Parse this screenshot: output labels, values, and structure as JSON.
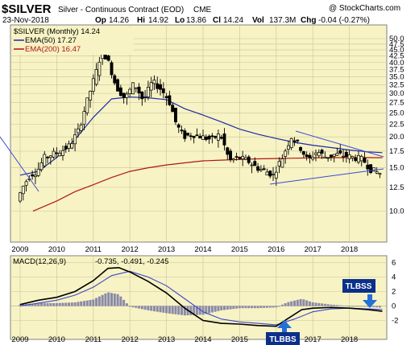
{
  "header": {
    "symbol": "$SILVER",
    "description": "Silver - Continuous Contract (EOD)",
    "exchange": "CME",
    "date": "23-Nov-2018",
    "open_label": "Op",
    "open": "14.26",
    "high_label": "Hi",
    "high": "14.92",
    "low_label": "Lo",
    "low": "13.86",
    "close_label": "Cl",
    "close": "14.24",
    "volume_label": "Vol",
    "volume": "137.3M",
    "change_label": "Chg",
    "change": "-0.04 (-0.27%)",
    "copyright": "@ StockCharts.com"
  },
  "legend": {
    "price": "$SILVER (Monthly) 14.24",
    "ema50": "EMA(50) 17.27",
    "ema200": "EMA(200) 16.47",
    "macd_title": "MACD(12,26,9)",
    "macd_values": "-0.735, -0.491, -0.245"
  },
  "annotations": {
    "top": "TLBSS",
    "bottom": "TLBBS"
  },
  "colors": {
    "panel_bg": "#f7f3c4",
    "candle": "#000000",
    "ema50": "#1c2aa8",
    "ema200": "#b01515",
    "trendline": "#3a48d8",
    "macd": "#000000",
    "signal": "#3b49cc",
    "histogram": "#8a8aa8",
    "annotation_bg": "#0b2f8a",
    "arrow": "#2470d8"
  },
  "chart_data": [
    {
      "type": "candlestick",
      "title": "$SILVER Silver - Continuous Contract (EOD)",
      "x_ticks": [
        "2009",
        "2010",
        "2011",
        "2012",
        "2013",
        "2014",
        "2015",
        "2016",
        "2017",
        "2018"
      ],
      "y_ticks": [
        "50.0",
        "47.5",
        "45.0",
        "42.5",
        "40.0",
        "37.5",
        "35.0",
        "32.5",
        "30.0",
        "27.5",
        "25.0",
        "22.5",
        "20.0",
        "17.5",
        "15.0",
        "12.5",
        "10.0"
      ],
      "ylim": [
        7.5,
        50.0
      ],
      "scale": "log",
      "series": [
        {
          "name": "$SILVER (Monthly) 14.24",
          "points": [
            [
              2009.0,
              11.0
            ],
            [
              2009.15,
              12.5
            ],
            [
              2009.35,
              14.0
            ],
            [
              2009.55,
              14.5
            ],
            [
              2009.75,
              16.5
            ],
            [
              2009.95,
              17.0
            ],
            [
              2010.2,
              17.5
            ],
            [
              2010.45,
              18.5
            ],
            [
              2010.7,
              21.5
            ],
            [
              2010.95,
              29.0
            ],
            [
              2011.15,
              36.0
            ],
            [
              2011.33,
              45.0
            ],
            [
              2011.5,
              40.0
            ],
            [
              2011.7,
              32.0
            ],
            [
              2011.95,
              28.5
            ],
            [
              2012.2,
              33.0
            ],
            [
              2012.45,
              28.0
            ],
            [
              2012.7,
              33.5
            ],
            [
              2012.95,
              31.0
            ],
            [
              2013.15,
              28.0
            ],
            [
              2013.35,
              22.5
            ],
            [
              2013.55,
              20.0
            ],
            [
              2013.8,
              20.5
            ],
            [
              2014.05,
              20.0
            ],
            [
              2014.3,
              19.5
            ],
            [
              2014.55,
              20.5
            ],
            [
              2014.8,
              16.0
            ],
            [
              2015.05,
              16.5
            ],
            [
              2015.3,
              16.0
            ],
            [
              2015.55,
              15.0
            ],
            [
              2015.8,
              14.5
            ],
            [
              2016.0,
              14.0
            ],
            [
              2016.25,
              16.5
            ],
            [
              2016.5,
              20.0
            ],
            [
              2016.7,
              18.5
            ],
            [
              2016.95,
              16.0
            ],
            [
              2017.2,
              17.5
            ],
            [
              2017.45,
              16.5
            ],
            [
              2017.7,
              17.0
            ],
            [
              2017.95,
              16.8
            ],
            [
              2018.2,
              16.5
            ],
            [
              2018.45,
              16.2
            ],
            [
              2018.65,
              14.8
            ],
            [
              2018.9,
              14.24
            ]
          ]
        },
        {
          "name": "EMA(50) 17.27",
          "points": [
            [
              2009.0,
              14.0
            ],
            [
              2009.5,
              14.5
            ],
            [
              2010.0,
              16.5
            ],
            [
              2010.5,
              19.5
            ],
            [
              2011.0,
              24.0
            ],
            [
              2011.5,
              28.5
            ],
            [
              2012.0,
              29.0
            ],
            [
              2012.5,
              28.8
            ],
            [
              2013.0,
              28.3
            ],
            [
              2013.5,
              26.0
            ],
            [
              2014.0,
              24.5
            ],
            [
              2014.5,
              23.0
            ],
            [
              2015.0,
              21.5
            ],
            [
              2015.5,
              20.5
            ],
            [
              2016.0,
              19.7
            ],
            [
              2016.5,
              19.0
            ],
            [
              2017.0,
              18.5
            ],
            [
              2017.5,
              18.1
            ],
            [
              2018.0,
              17.7
            ],
            [
              2018.5,
              17.4
            ],
            [
              2018.9,
              17.27
            ]
          ]
        },
        {
          "name": "EMA(200) 16.47",
          "points": [
            [
              2009.35,
              10.0
            ],
            [
              2010.0,
              11.0
            ],
            [
              2010.5,
              12.0
            ],
            [
              2011.0,
              12.8
            ],
            [
              2011.5,
              13.7
            ],
            [
              2012.0,
              14.5
            ],
            [
              2012.5,
              15.0
            ],
            [
              2013.0,
              15.4
            ],
            [
              2013.5,
              15.7
            ],
            [
              2014.0,
              16.0
            ],
            [
              2014.5,
              16.1
            ],
            [
              2015.0,
              16.2
            ],
            [
              2015.5,
              16.3
            ],
            [
              2016.0,
              16.35
            ],
            [
              2016.5,
              16.4
            ],
            [
              2017.0,
              16.45
            ],
            [
              2017.5,
              16.47
            ],
            [
              2018.0,
              16.5
            ],
            [
              2018.5,
              16.48
            ],
            [
              2018.9,
              16.47
            ]
          ]
        }
      ]
    },
    {
      "type": "line",
      "title": "MACD(12,26,9) -0.735, -0.491, -0.245",
      "x_ticks": [
        "2009",
        "2010",
        "2011",
        "2012",
        "2013",
        "2014",
        "2015",
        "2016",
        "2017",
        "2018"
      ],
      "y_ticks": [
        "6",
        "4",
        "2",
        "0",
        "-2"
      ],
      "ylim": [
        -3,
        7
      ],
      "series": [
        {
          "name": "MACD",
          "points": [
            [
              2009.0,
              0.2
            ],
            [
              2009.5,
              0.8
            ],
            [
              2010.0,
              1.2
            ],
            [
              2010.5,
              2.0
            ],
            [
              2011.0,
              3.5
            ],
            [
              2011.4,
              5.2
            ],
            [
              2011.7,
              5.3
            ],
            [
              2012.0,
              4.7
            ],
            [
              2012.5,
              3.4
            ],
            [
              2013.0,
              1.8
            ],
            [
              2013.5,
              -0.3
            ],
            [
              2014.0,
              -2.0
            ],
            [
              2014.5,
              -2.4
            ],
            [
              2015.0,
              -2.5
            ],
            [
              2015.5,
              -2.7
            ],
            [
              2016.0,
              -2.8
            ],
            [
              2016.3,
              -1.8
            ],
            [
              2016.7,
              -0.5
            ],
            [
              2017.0,
              -0.3
            ],
            [
              2017.5,
              -0.2
            ],
            [
              2018.0,
              -0.3
            ],
            [
              2018.5,
              -0.5
            ],
            [
              2018.9,
              -0.735
            ]
          ]
        },
        {
          "name": "Signal",
          "points": [
            [
              2009.0,
              0.0
            ],
            [
              2009.5,
              0.4
            ],
            [
              2010.0,
              0.8
            ],
            [
              2010.5,
              1.5
            ],
            [
              2011.0,
              2.6
            ],
            [
              2011.5,
              4.2
            ],
            [
              2012.0,
              4.8
            ],
            [
              2012.5,
              4.0
            ],
            [
              2013.0,
              2.8
            ],
            [
              2013.5,
              1.0
            ],
            [
              2014.0,
              -0.8
            ],
            [
              2014.5,
              -1.8
            ],
            [
              2015.0,
              -2.2
            ],
            [
              2015.5,
              -2.4
            ],
            [
              2016.0,
              -2.6
            ],
            [
              2016.5,
              -1.8
            ],
            [
              2017.0,
              -0.8
            ],
            [
              2017.5,
              -0.4
            ],
            [
              2018.0,
              -0.3
            ],
            [
              2018.5,
              -0.4
            ],
            [
              2018.9,
              -0.491
            ]
          ]
        },
        {
          "name": "Histogram",
          "points": [
            [
              2009.0,
              0.2
            ],
            [
              2009.5,
              0.4
            ],
            [
              2010.0,
              0.4
            ],
            [
              2010.5,
              0.5
            ],
            [
              2011.0,
              0.9
            ],
            [
              2011.4,
              1.9
            ],
            [
              2011.7,
              1.6
            ],
            [
              2012.0,
              -0.1
            ],
            [
              2012.5,
              -0.6
            ],
            [
              2013.0,
              -1.0
            ],
            [
              2013.5,
              -1.3
            ],
            [
              2014.0,
              -1.2
            ],
            [
              2014.5,
              -0.6
            ],
            [
              2015.0,
              -0.3
            ],
            [
              2015.5,
              -0.3
            ],
            [
              2016.0,
              -0.2
            ],
            [
              2016.3,
              0.5
            ],
            [
              2016.7,
              1.0
            ],
            [
              2017.0,
              0.5
            ],
            [
              2017.5,
              0.2
            ],
            [
              2018.0,
              0.0
            ],
            [
              2018.5,
              -0.1
            ],
            [
              2018.9,
              -0.245
            ]
          ]
        }
      ]
    }
  ]
}
